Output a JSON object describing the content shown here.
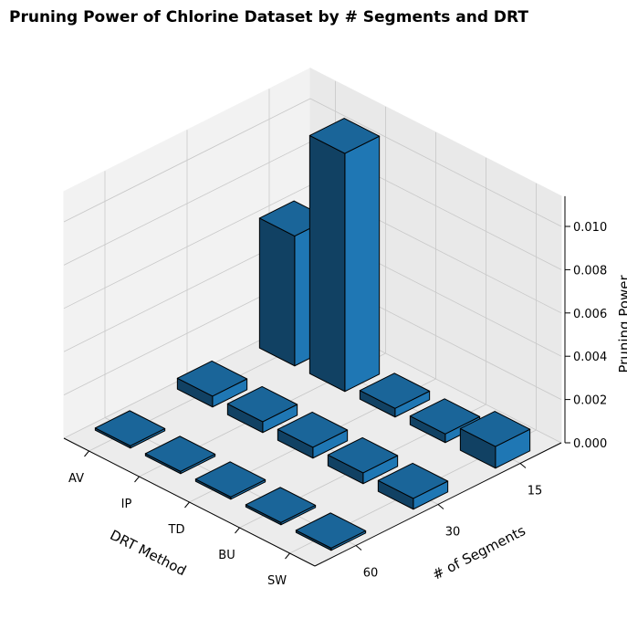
{
  "chart_data": {
    "type": "bar3d",
    "title": "Pruning Power of Chlorine Dataset by # Segments and DRT",
    "xlabel": "DRT Method",
    "ylabel": "# of Segments",
    "zlabel": "Pruning Power",
    "x_categories": [
      "AV",
      "IP",
      "TD",
      "BU",
      "SW"
    ],
    "y_categories": [
      "15",
      "30",
      "60"
    ],
    "values": [
      [
        0.006,
        0.011,
        0.0004,
        0.0004,
        0.001
      ],
      [
        0.0005,
        0.0005,
        0.0005,
        0.0005,
        0.0005
      ],
      [
        0.0001,
        0.0001,
        0.0001,
        0.0001,
        0.0001
      ]
    ],
    "color": "#1f77b4",
    "zlim": [
      0,
      0.0114
    ],
    "zticks": [
      {
        "value": 0,
        "label": "0.000"
      },
      {
        "value": 0.002,
        "label": "0.002"
      },
      {
        "value": 0.004,
        "label": "0.004"
      },
      {
        "value": 0.006,
        "label": "0.006"
      },
      {
        "value": 0.008,
        "label": "0.008"
      },
      {
        "value": 0.01,
        "label": "0.010"
      }
    ],
    "grid": true
  }
}
